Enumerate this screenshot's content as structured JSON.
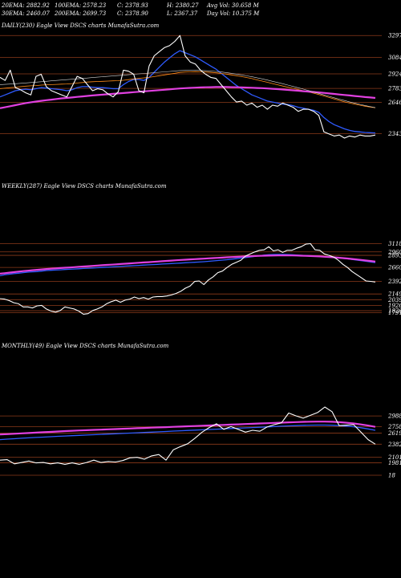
{
  "header": {
    "row1": [
      "20EMA: 2882.92",
      "100EMA: 2578.23",
      "C: 2378.93",
      "H: 2380.27",
      "Avg Vol: 30.658  M"
    ],
    "row2": [
      "30EMA: 2460.07",
      "200EMA: 2699.73",
      "C: 2378.90",
      "L: 2367.37",
      "Day Vol: 10.375  M"
    ]
  },
  "colors": {
    "background": "#000000",
    "price": "#ffffff",
    "ema_blue": "#2f5bff",
    "ema_magenta": "#e040e0",
    "ema_orange": "#ff8c1a",
    "ema_white_thin": "#d8d8d8",
    "level_line": "#8b3a1a"
  },
  "chart_data": [
    {
      "type": "line",
      "title": "DAILY(230) Eagle  View  DSCS charts MunafaSutra.com",
      "levels": [
        "3297",
        "3084",
        "2924",
        "2783",
        "2646",
        "2343"
      ],
      "ylim": [
        2300,
        3330
      ],
      "series": [
        {
          "values": [
            2890,
            2860,
            2960,
            2790,
            2770,
            2740,
            2720,
            2900,
            2920,
            2800,
            2760,
            2740,
            2720,
            2700,
            2800,
            2900,
            2880,
            2820,
            2760,
            2780,
            2770,
            2730,
            2700,
            2750,
            2960,
            2950,
            2920,
            2760,
            2740,
            3000,
            3100,
            3140,
            3180,
            3200,
            3240,
            3297,
            3100,
            3040,
            3020,
            2960,
            2920,
            2890,
            2880,
            2820,
            2760,
            2700,
            2650,
            2660,
            2620,
            2640,
            2600,
            2620,
            2580,
            2620,
            2610,
            2640,
            2620,
            2600,
            2560,
            2580,
            2580,
            2560,
            2520,
            2360,
            2340,
            2320,
            2330,
            2300,
            2320,
            2310,
            2330,
            2320,
            2320,
            2330
          ]
        },
        {
          "values": [
            2700,
            2720,
            2740,
            2760,
            2770,
            2775,
            2770,
            2780,
            2790,
            2785,
            2780,
            2775,
            2770,
            2760,
            2770,
            2790,
            2800,
            2800,
            2795,
            2790,
            2790,
            2785,
            2780,
            2780,
            2820,
            2850,
            2870,
            2870,
            2860,
            2890,
            2940,
            2990,
            3040,
            3080,
            3120,
            3150,
            3130,
            3110,
            3090,
            3060,
            3030,
            3000,
            2970,
            2930,
            2890,
            2850,
            2810,
            2780,
            2750,
            2720,
            2700,
            2680,
            2660,
            2650,
            2640,
            2630,
            2625,
            2615,
            2600,
            2590,
            2580,
            2570,
            2550,
            2500,
            2460,
            2430,
            2410,
            2390,
            2375,
            2365,
            2360,
            2355,
            2352,
            2350
          ]
        },
        {
          "values": [
            2780,
            2785,
            2790,
            2795,
            2800,
            2805,
            2808,
            2810,
            2815,
            2818,
            2820,
            2822,
            2824,
            2826,
            2830,
            2835,
            2840,
            2845,
            2848,
            2850,
            2852,
            2854,
            2856,
            2858,
            2862,
            2868,
            2875,
            2880,
            2885,
            2890,
            2898,
            2906,
            2914,
            2922,
            2930,
            2938,
            2942,
            2944,
            2945,
            2944,
            2942,
            2938,
            2934,
            2928,
            2922,
            2914,
            2906,
            2898,
            2888,
            2878,
            2866,
            2854,
            2842,
            2830,
            2818,
            2806,
            2795,
            2784,
            2772,
            2760,
            2748,
            2736,
            2724,
            2710,
            2695,
            2680,
            2666,
            2652,
            2640,
            2630,
            2620,
            2610,
            2602,
            2595
          ]
        },
        {
          "values": [
            2590,
            2600,
            2610,
            2620,
            2630,
            2640,
            2648,
            2655,
            2662,
            2668,
            2674,
            2680,
            2686,
            2690,
            2695,
            2700,
            2705,
            2710,
            2714,
            2718,
            2722,
            2726,
            2730,
            2734,
            2738,
            2742,
            2746,
            2750,
            2754,
            2758,
            2762,
            2766,
            2770,
            2774,
            2778,
            2782,
            2785,
            2788,
            2790,
            2792,
            2794,
            2795,
            2796,
            2796,
            2796,
            2795,
            2794,
            2793,
            2791,
            2789,
            2787,
            2785,
            2782,
            2779,
            2776,
            2772,
            2768,
            2764,
            2760,
            2756,
            2752,
            2748,
            2744,
            2739,
            2734,
            2729,
            2724,
            2719,
            2714,
            2709,
            2704,
            2699,
            2695,
            2690
          ]
        },
        {
          "values": [
            2820,
            2822,
            2825,
            2828,
            2832,
            2836,
            2840,
            2844,
            2848,
            2852,
            2856,
            2860,
            2864,
            2868,
            2872,
            2876,
            2880,
            2884,
            2888,
            2892,
            2896,
            2900,
            2904,
            2908,
            2912,
            2916,
            2920,
            2924,
            2928,
            2932,
            2936,
            2940,
            2944,
            2948,
            2952,
            2956,
            2958,
            2960,
            2960,
            2958,
            2955,
            2952,
            2948,
            2943,
            2937,
            2930,
            2922,
            2914,
            2905,
            2896,
            2886,
            2875,
            2864,
            2852,
            2840,
            2828,
            2815,
            2802,
            2789,
            2776,
            2762,
            2748,
            2734,
            2720,
            2706,
            2692,
            2678,
            2665,
            2652,
            2640,
            2628,
            2617,
            2606,
            2596
          ]
        }
      ]
    },
    {
      "type": "line",
      "title": "WEEKLY(287) Eagle  View  DSCS charts MunafaSutra.com",
      "levels": [
        "3118",
        "2960",
        "2893",
        "2660",
        "2392",
        "2149",
        "2039",
        "1926",
        "1826",
        "1791"
      ],
      "ylim": [
        1750,
        3250
      ],
      "series": [
        {
          "values": [
            2060,
            2050,
            2020,
            1980,
            1960,
            1900,
            1900,
            1880,
            1920,
            1930,
            1860,
            1820,
            1800,
            1830,
            1900,
            1880,
            1860,
            1820,
            1760,
            1770,
            1830,
            1860,
            1900,
            1960,
            2000,
            2030,
            1990,
            2030,
            2050,
            2090,
            2060,
            2080,
            2050,
            2090,
            2100,
            2100,
            2110,
            2130,
            2160,
            2200,
            2260,
            2300,
            2390,
            2400,
            2330,
            2420,
            2480,
            2560,
            2590,
            2660,
            2720,
            2760,
            2800,
            2880,
            2920,
            2960,
            2990,
            3000,
            3060,
            2980,
            3000,
            2950,
            2990,
            2990,
            3030,
            3060,
            3110,
            3118,
            3000,
            2990,
            2920,
            2893,
            2860,
            2800,
            2720,
            2660,
            2580,
            2520,
            2460,
            2400,
            2392,
            2380
          ]
        },
        {
          "values": [
            2500,
            2520,
            2530,
            2540,
            2550,
            2560,
            2570,
            2575,
            2580,
            2590,
            2600,
            2605,
            2610,
            2615,
            2620,
            2625,
            2630,
            2635,
            2640,
            2645,
            2650,
            2655,
            2660,
            2665,
            2670,
            2675,
            2680,
            2685,
            2690,
            2695,
            2700,
            2705,
            2710,
            2715,
            2720,
            2725,
            2730,
            2735,
            2740,
            2745,
            2750,
            2755,
            2760,
            2765,
            2770,
            2778,
            2786,
            2794,
            2802,
            2810,
            2820,
            2830,
            2840,
            2850,
            2862,
            2874,
            2886,
            2898,
            2905,
            2910,
            2912,
            2912,
            2910,
            2905,
            2900,
            2895,
            2890,
            2885,
            2880,
            2875,
            2870,
            2862,
            2854,
            2846,
            2836,
            2826,
            2814,
            2802,
            2790,
            2778,
            2766,
            2754
          ]
        },
        {
          "values": [
            2540,
            2550,
            2560,
            2570,
            2580,
            2590,
            2598,
            2606,
            2614,
            2622,
            2630,
            2636,
            2642,
            2648,
            2654,
            2660,
            2666,
            2672,
            2678,
            2684,
            2690,
            2696,
            2702,
            2708,
            2714,
            2720,
            2726,
            2732,
            2738,
            2744,
            2750,
            2756,
            2762,
            2768,
            2774,
            2780,
            2786,
            2792,
            2798,
            2804,
            2810,
            2815,
            2820,
            2825,
            2830,
            2835,
            2840,
            2845,
            2850,
            2855,
            2860,
            2864,
            2868,
            2872,
            2876,
            2880,
            2883,
            2886,
            2888,
            2890,
            2891,
            2892,
            2892,
            2891,
            2889,
            2887,
            2884,
            2880,
            2876,
            2872,
            2867,
            2861,
            2855,
            2848,
            2840,
            2832,
            2823,
            2814,
            2804,
            2794,
            2784,
            2774
          ]
        }
      ]
    },
    {
      "type": "line",
      "title": "MONTHLY(49) Eagle  View  DSCS charts MunafaSutra.com",
      "levels": [
        "2988",
        "2758",
        "2619",
        "2382",
        "2101",
        "1981",
        "18"
      ],
      "ylim": [
        1750,
        3300
      ],
      "series": [
        {
          "values": [
            2040,
            2050,
            1960,
            1990,
            2020,
            1980,
            1990,
            1960,
            1980,
            1950,
            1980,
            1950,
            1990,
            2040,
            1990,
            2010,
            2000,
            2030,
            2090,
            2100,
            2060,
            2130,
            2160,
            2040,
            2260,
            2330,
            2390,
            2510,
            2640,
            2740,
            2820,
            2700,
            2760,
            2700,
            2640,
            2680,
            2660,
            2750,
            2800,
            2840,
            3050,
            2990,
            2940,
            3000,
            3060,
            3180,
            3080,
            2780,
            2790,
            2800,
            2640,
            2480,
            2382
          ]
        },
        {
          "values": [
            2480,
            2490,
            2500,
            2510,
            2518,
            2526,
            2534,
            2542,
            2550,
            2557,
            2564,
            2571,
            2578,
            2585,
            2592,
            2599,
            2606,
            2613,
            2620,
            2627,
            2634,
            2641,
            2648,
            2655,
            2662,
            2669,
            2676,
            2683,
            2690,
            2697,
            2704,
            2711,
            2718,
            2725,
            2732,
            2739,
            2746,
            2753,
            2760,
            2767,
            2774,
            2780,
            2786,
            2790,
            2792,
            2792,
            2788,
            2780,
            2770,
            2755,
            2735,
            2710,
            2680
          ]
        },
        {
          "values": [
            2590,
            2598,
            2606,
            2614,
            2622,
            2630,
            2638,
            2646,
            2654,
            2662,
            2670,
            2676,
            2682,
            2688,
            2694,
            2700,
            2706,
            2712,
            2718,
            2724,
            2730,
            2736,
            2742,
            2748,
            2754,
            2760,
            2766,
            2772,
            2778,
            2784,
            2790,
            2796,
            2802,
            2808,
            2814,
            2820,
            2826,
            2832,
            2838,
            2844,
            2850,
            2855,
            2860,
            2864,
            2866,
            2866,
            2862,
            2854,
            2842,
            2826,
            2806,
            2782,
            2754
          ]
        }
      ]
    }
  ]
}
